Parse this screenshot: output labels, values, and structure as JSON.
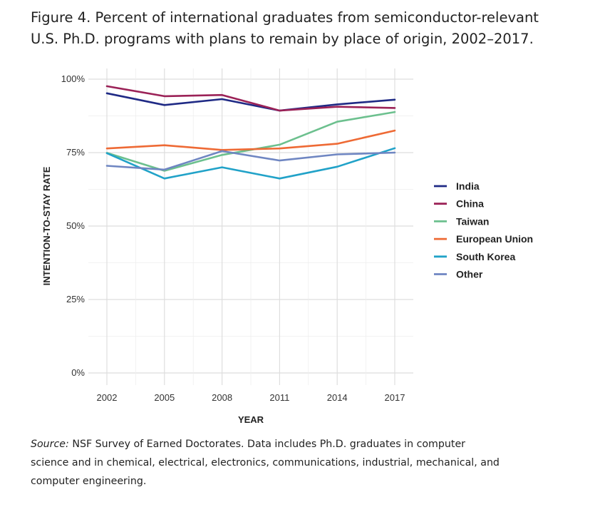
{
  "title_lines": [
    "Figure 4. Percent of international graduates from semiconductor-relevant",
    "U.S. Ph.D. programs with plans to remain by place of origin, 2002–2017."
  ],
  "source": {
    "label": "Source:",
    "lines": [
      " NSF Survey of Earned Doctorates. Data includes Ph.D. graduates in computer",
      "science and in chemical, electrical, electronics, communications, industrial, mechanical, and",
      "computer engineering."
    ]
  },
  "chart_data": {
    "type": "line",
    "title": "",
    "xlabel": "YEAR",
    "ylabel": "INTENTION-TO-STAY RATE",
    "x": [
      2002,
      2005,
      2008,
      2011,
      2014,
      2017
    ],
    "x_tick_labels": [
      "2002",
      "2005",
      "2008",
      "2011",
      "2014",
      "2017"
    ],
    "ylim": [
      0,
      100
    ],
    "y_ticks": [
      0,
      25,
      50,
      75,
      100
    ],
    "y_tick_labels": [
      "0%",
      "25%",
      "50%",
      "75%",
      "100%"
    ],
    "grid": true,
    "legend_position": "right",
    "series": [
      {
        "name": "India",
        "color": "#1f2a85",
        "values": [
          95.2,
          91.2,
          93.2,
          89.3,
          91.4,
          93.0
        ]
      },
      {
        "name": "China",
        "color": "#9b2257",
        "values": [
          97.6,
          94.2,
          94.6,
          89.3,
          90.6,
          90.2
        ]
      },
      {
        "name": "Taiwan",
        "color": "#6cc08e",
        "values": [
          74.9,
          68.8,
          74.2,
          77.7,
          85.5,
          88.8
        ]
      },
      {
        "name": "European Union",
        "color": "#ee6a35",
        "values": [
          76.4,
          77.5,
          75.9,
          76.4,
          78.0,
          82.5
        ]
      },
      {
        "name": "South Korea",
        "color": "#21a2c8",
        "values": [
          74.8,
          66.2,
          70.0,
          66.2,
          70.2,
          76.5
        ]
      },
      {
        "name": "Other",
        "color": "#6f86c2",
        "values": [
          70.5,
          69.2,
          75.5,
          72.3,
          74.4,
          75.0
        ]
      }
    ]
  }
}
